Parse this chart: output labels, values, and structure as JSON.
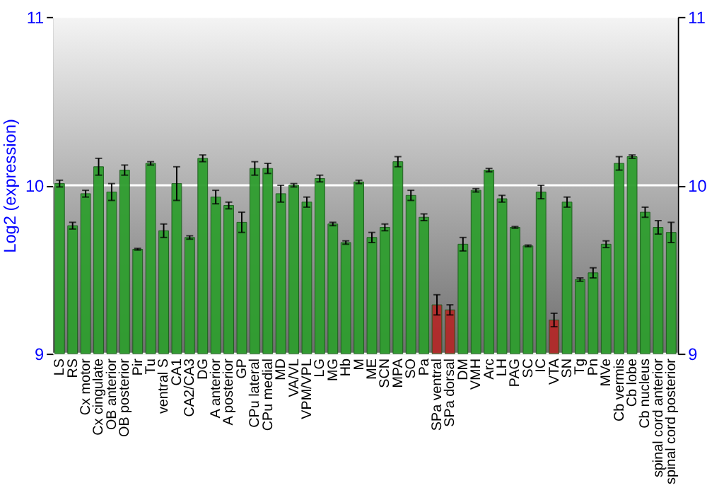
{
  "chart_data": {
    "type": "bar",
    "ylabel": "Log2 (expression)",
    "categories": [
      "LS",
      "RS",
      "Cx motor",
      "Cx cingulate",
      "OB anterior",
      "OB posterior",
      "Pir",
      "Tu",
      "ventral S",
      "CA1",
      "CA2/CA3",
      "DG",
      "A anterior",
      "A posterior",
      "GP",
      "CPu lateral",
      "CPu medial",
      "MD",
      "VA/VL",
      "VPM/VPL",
      "LG",
      "MG",
      "Hb",
      "M",
      "ME",
      "SCN",
      "MPA",
      "SO",
      "Pa",
      "SPa ventral",
      "SPa dorsal",
      "DM",
      "VMH",
      "Arc",
      "LH",
      "PAG",
      "SC",
      "IC",
      "VTA",
      "SN",
      "Tg",
      "Pn",
      "MVe",
      "Cb vermis",
      "Cb lobe",
      "Cb nucleus",
      "spinal cord anterior",
      "spinal cord posterior"
    ],
    "values": [
      10.01,
      9.76,
      9.95,
      10.11,
      9.96,
      10.09,
      9.62,
      10.13,
      9.73,
      10.01,
      9.69,
      10.16,
      9.93,
      9.88,
      9.78,
      10.1,
      10.1,
      9.95,
      10.0,
      9.9,
      10.04,
      9.77,
      9.66,
      10.02,
      9.69,
      9.75,
      10.14,
      9.94,
      9.81,
      9.29,
      9.26,
      9.65,
      9.97,
      10.09,
      9.92,
      9.75,
      9.64,
      9.96,
      9.2,
      9.9,
      9.44,
      9.48,
      9.65,
      10.13,
      10.17,
      9.84,
      9.75,
      9.72
    ],
    "errors": [
      0.02,
      0.02,
      0.02,
      0.05,
      0.05,
      0.03,
      0.005,
      0.01,
      0.04,
      0.1,
      0.01,
      0.02,
      0.04,
      0.02,
      0.06,
      0.04,
      0.03,
      0.05,
      0.01,
      0.03,
      0.02,
      0.01,
      0.01,
      0.01,
      0.03,
      0.02,
      0.03,
      0.03,
      0.02,
      0.06,
      0.03,
      0.04,
      0.01,
      0.01,
      0.02,
      0.005,
      0.005,
      0.04,
      0.04,
      0.03,
      0.01,
      0.03,
      0.02,
      0.04,
      0.01,
      0.03,
      0.04,
      0.06
    ],
    "colors": [
      "#2f9e2f",
      "#2f9e2f",
      "#2f9e2f",
      "#2f9e2f",
      "#2f9e2f",
      "#2f9e2f",
      "#2f9e2f",
      "#2f9e2f",
      "#2f9e2f",
      "#2f9e2f",
      "#2f9e2f",
      "#2f9e2f",
      "#2f9e2f",
      "#2f9e2f",
      "#2f9e2f",
      "#2f9e2f",
      "#2f9e2f",
      "#2f9e2f",
      "#2f9e2f",
      "#2f9e2f",
      "#2f9e2f",
      "#2f9e2f",
      "#2f9e2f",
      "#2f9e2f",
      "#2f9e2f",
      "#2f9e2f",
      "#2f9e2f",
      "#2f9e2f",
      "#2f9e2f",
      "#b22a2a",
      "#b22a2a",
      "#2f9e2f",
      "#2f9e2f",
      "#2f9e2f",
      "#2f9e2f",
      "#2f9e2f",
      "#2f9e2f",
      "#2f9e2f",
      "#b22a2a",
      "#2f9e2f",
      "#2f9e2f",
      "#2f9e2f",
      "#2f9e2f",
      "#2f9e2f",
      "#2f9e2f",
      "#2f9e2f",
      "#2f9e2f",
      "#2f9e2f"
    ],
    "ylim": [
      9,
      11
    ],
    "yticks": [
      {
        "value": 9,
        "label": "9"
      },
      {
        "value": 10,
        "label": "10"
      },
      {
        "value": 11,
        "label": "11"
      }
    ],
    "y2lim": [
      9,
      11
    ],
    "y2ticks": [
      {
        "value": 9,
        "label": "9"
      },
      {
        "value": 10,
        "label": "10"
      },
      {
        "value": 11,
        "label": "11"
      }
    ],
    "grid": "y"
  }
}
